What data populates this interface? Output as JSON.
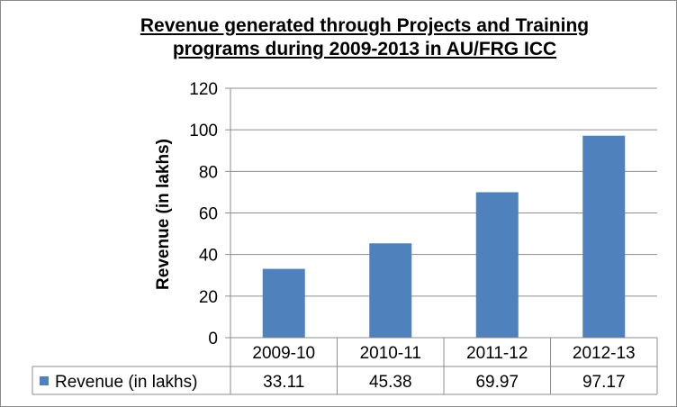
{
  "chart_data": {
    "type": "bar",
    "title_lines": [
      "Revenue generated through Projects and Training",
      "programs during 2009-2013  in AU/FRG ICC"
    ],
    "categories": [
      "2009-10",
      "2010-11",
      "2011-12",
      "2012-13"
    ],
    "series": [
      {
        "name": "Revenue (in lakhs)",
        "values": [
          33.11,
          45.38,
          69.97,
          97.17
        ],
        "color": "#4f81bd"
      }
    ],
    "ylabel": "Revenue (in lakhs)",
    "ylim": [
      0,
      120
    ],
    "yticks": [
      0,
      20,
      40,
      60,
      80,
      100,
      120
    ],
    "grid": true,
    "legend": "data-table-row",
    "data_table": {
      "row_label": "Revenue (in lakhs)",
      "values": [
        "33.11",
        "45.38",
        "69.97",
        "97.17"
      ]
    }
  }
}
